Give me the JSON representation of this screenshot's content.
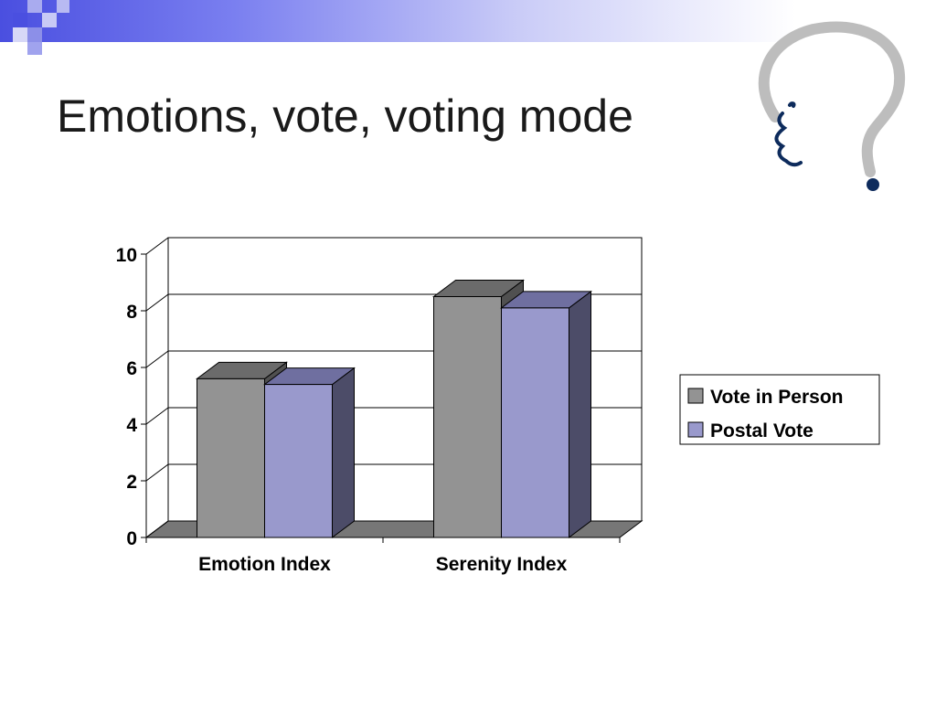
{
  "slide": {
    "title": "Emotions, vote, voting mode"
  },
  "decoration": {
    "icon": "question-mark-face-icon"
  },
  "colors": {
    "band_start": "#4a4fe0",
    "person_front": "#939393",
    "person_top": "#6b6b6b",
    "person_side": "#505050",
    "postal_front": "#9999cc",
    "postal_top": "#6f6fa0",
    "postal_side": "#4c4c68",
    "floor": "#777777",
    "face_navy": "#0d2b5c",
    "qmark_grey": "#bdbdbd"
  },
  "chart_data": {
    "type": "bar",
    "categories": [
      "Emotion Index",
      "Serenity Index"
    ],
    "series": [
      {
        "name": "Vote in Person",
        "values": [
          5.6,
          8.5
        ]
      },
      {
        "name": "Postal Vote",
        "values": [
          5.4,
          8.1
        ]
      }
    ],
    "ylim": [
      0,
      10
    ],
    "yticks": [
      "0",
      "2",
      "4",
      "6",
      "8",
      "10"
    ],
    "grid": true,
    "legend_position": "right",
    "three_d": true
  }
}
